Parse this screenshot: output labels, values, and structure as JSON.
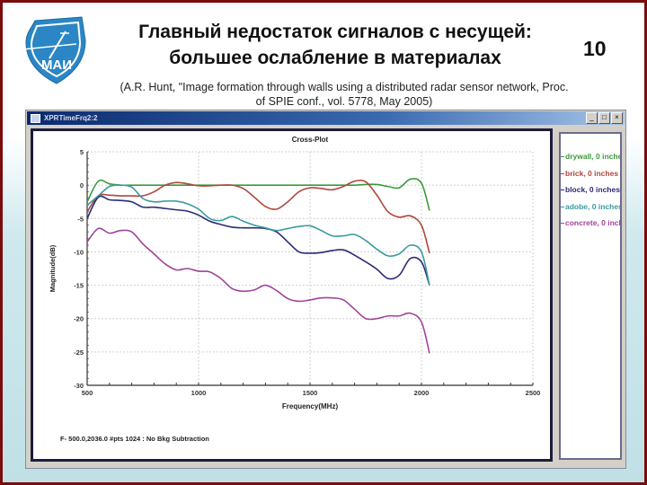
{
  "slide": {
    "title_line1": "Главный недостаток сигналов с несущей:",
    "title_line2": "большее ослабление в материалах",
    "slide_number": "10",
    "citation_line1": "(A.R. Hunt, \"Image formation through walls using a distributed radar sensor network, Proc.",
    "citation_line2": "of SPIE conf., vol. 5778, May 2005)",
    "logo_text": "МАИ",
    "colors": {
      "border": "#7a0c0c",
      "logo_blue": "#2a86c4",
      "background_bottom": "#bfe0e6"
    }
  },
  "window": {
    "title": "XPRTimeFrq2:2",
    "buttons": {
      "minimize": "_",
      "maximize": "□",
      "close": "×"
    },
    "status_text": "F- 500.0,2036.0  #pts 1024 : No Bkg Subtraction"
  },
  "legend": [
    {
      "label": "drywall, 0 inches",
      "color": "#3a9a3a"
    },
    {
      "label": "brick, 0 inches",
      "color": "#b0473a"
    },
    {
      "label": "block, 0 inches",
      "color": "#2a2a78"
    },
    {
      "label": "adobe, 0 inches",
      "color": "#3a9aa0"
    },
    {
      "label": "concrete, 0 inches",
      "color": "#a0429a"
    }
  ],
  "chart_data": {
    "type": "line",
    "title": "Cross-Plot",
    "xlabel": "Frequency(MHz)",
    "ylabel": "Magnitude(dB)",
    "xlim": [
      500,
      2500
    ],
    "ylim": [
      -30,
      5
    ],
    "xticks": [
      500,
      1000,
      1500,
      2000,
      2500
    ],
    "yticks": [
      5,
      0,
      -5,
      -10,
      -15,
      -20,
      -25,
      -30
    ],
    "grid": true,
    "legend_position": "right (separate pane)",
    "x": [
      500,
      550,
      600,
      650,
      700,
      750,
      800,
      850,
      900,
      950,
      1000,
      1050,
      1100,
      1150,
      1200,
      1250,
      1300,
      1350,
      1400,
      1450,
      1500,
      1550,
      1600,
      1650,
      1700,
      1750,
      1800,
      1850,
      1900,
      1950,
      2000,
      2036
    ],
    "series": [
      {
        "name": "drywall, 0 inches",
        "color": "#3a9a3a",
        "values": [
          -2.5,
          0.6,
          0.2,
          0.0,
          0.0,
          0.0,
          0.0,
          0.0,
          0.0,
          0.0,
          0.0,
          0.0,
          0.0,
          0.0,
          0.0,
          0.0,
          0.0,
          0.0,
          0.0,
          0.0,
          0.0,
          0.0,
          0.0,
          0.0,
          0.0,
          0.1,
          0.1,
          -0.2,
          -0.4,
          0.9,
          0.3,
          -3.8
        ]
      },
      {
        "name": "brick, 0 inches",
        "color": "#b0473a",
        "values": [
          -4.0,
          -1.6,
          -1.5,
          -1.6,
          -1.6,
          -1.6,
          -1.0,
          0.0,
          0.4,
          0.2,
          -0.1,
          -0.1,
          0.0,
          0.0,
          -0.5,
          -1.8,
          -3.2,
          -3.6,
          -2.5,
          -1.0,
          -0.4,
          -0.5,
          -0.7,
          -0.2,
          0.6,
          0.5,
          -1.5,
          -4.0,
          -4.8,
          -4.6,
          -6.0,
          -10.2
        ]
      },
      {
        "name": "block, 0 inches",
        "color": "#2a2a78",
        "values": [
          -5.0,
          -1.8,
          -2.2,
          -2.3,
          -2.5,
          -3.3,
          -3.3,
          -3.5,
          -3.7,
          -3.9,
          -4.5,
          -5.4,
          -5.9,
          -6.3,
          -6.4,
          -6.4,
          -6.5,
          -7.0,
          -8.5,
          -10.0,
          -10.2,
          -10.1,
          -9.8,
          -9.7,
          -10.5,
          -11.5,
          -12.6,
          -14.0,
          -13.5,
          -11.0,
          -11.5,
          -15.0
        ]
      },
      {
        "name": "adobe, 0 inches",
        "color": "#3a9aa0",
        "values": [
          -3.0,
          -1.6,
          -0.2,
          0.0,
          -0.3,
          -2.0,
          -2.5,
          -2.4,
          -2.4,
          -2.8,
          -3.6,
          -5.0,
          -5.3,
          -4.7,
          -5.4,
          -6.0,
          -6.4,
          -6.8,
          -6.5,
          -6.2,
          -6.1,
          -6.8,
          -7.6,
          -7.6,
          -7.4,
          -8.3,
          -9.6,
          -10.6,
          -10.3,
          -9.0,
          -10.0,
          -15.0
        ]
      },
      {
        "name": "concrete, 0 inches",
        "color": "#a0429a",
        "values": [
          -8.5,
          -6.5,
          -7.2,
          -6.8,
          -7.0,
          -8.8,
          -10.3,
          -11.8,
          -12.7,
          -12.5,
          -12.9,
          -13.0,
          -14.0,
          -15.5,
          -15.9,
          -15.7,
          -15.0,
          -15.8,
          -17.0,
          -17.4,
          -17.2,
          -16.9,
          -16.9,
          -17.2,
          -18.6,
          -20.0,
          -20.0,
          -19.6,
          -19.6,
          -19.2,
          -20.5,
          -25.2
        ]
      }
    ]
  }
}
